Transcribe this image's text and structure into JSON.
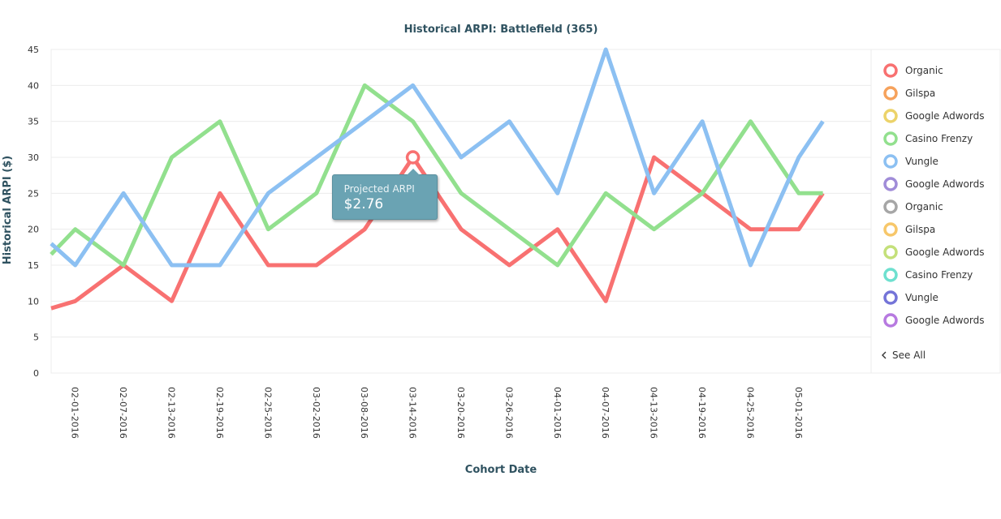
{
  "chart_data": {
    "type": "line",
    "title": "Historical ARPI: Battlefield (365)",
    "xlabel": "Cohort Date",
    "ylabel": "Historical ARPI ($)",
    "ylim": [
      0,
      45
    ],
    "yticks": [
      0,
      5,
      10,
      15,
      20,
      25,
      30,
      35,
      40,
      45
    ],
    "grid": true,
    "legend_position": "right",
    "categories": [
      "02-01-2016",
      "02-07-2016",
      "02-13-2016",
      "02-19-2016",
      "02-25-2016",
      "03-02-2016",
      "03-08-2016",
      "03-14-2016",
      "03-20-2016",
      "03-26-2016",
      "04-01-2016",
      "04-07-2016",
      "04-13-2016",
      "04-19-2016",
      "04-25-2016",
      "05-01-2016"
    ],
    "x_range": [
      -0.5,
      16.5
    ],
    "series": [
      {
        "name": "Organic",
        "color": "#f87171",
        "x": [
          -0.5,
          0,
          1,
          2,
          3,
          4,
          5,
          6,
          7,
          8,
          9,
          10,
          11,
          12,
          13,
          14,
          15,
          15.5
        ],
        "values": [
          9,
          10,
          15,
          10,
          25,
          15,
          15,
          20,
          30,
          20,
          15,
          20,
          10,
          30,
          25,
          20,
          20,
          25
        ]
      },
      {
        "name": "Casino Frenzy",
        "color": "#92e08e",
        "x": [
          -0.5,
          0,
          1,
          2,
          3,
          4,
          5,
          6,
          7,
          8,
          9,
          10,
          11,
          12,
          13,
          14,
          15,
          15.5
        ],
        "values": [
          16.5,
          20,
          15,
          30,
          35,
          20,
          25,
          40,
          35,
          25,
          20,
          15,
          25,
          20,
          25,
          35,
          25,
          25
        ]
      },
      {
        "name": "Vungle",
        "color": "#8cc0f2",
        "x": [
          -0.5,
          0,
          1,
          2,
          3,
          4,
          5,
          6,
          7,
          8,
          9,
          10,
          11,
          12,
          13,
          14,
          15,
          15.5
        ],
        "values": [
          18,
          15,
          25,
          15,
          15,
          25,
          30,
          35,
          40,
          30,
          35,
          25,
          45,
          25,
          35,
          15,
          30,
          35
        ]
      }
    ],
    "highlight_point": {
      "series": "Organic",
      "x": 7,
      "value": 30
    },
    "tooltip": {
      "label": "Projected ARPI",
      "value": "$2.76"
    }
  },
  "legend": {
    "items": [
      {
        "label": "Organic",
        "color": "#f87171"
      },
      {
        "label": "Gilspa",
        "color": "#f6a25c"
      },
      {
        "label": "Google Adwords",
        "color": "#ecd36a"
      },
      {
        "label": "Casino Frenzy",
        "color": "#92e08e"
      },
      {
        "label": "Vungle",
        "color": "#8cc0f2"
      },
      {
        "label": "Google Adwords",
        "color": "#a08cd8"
      },
      {
        "label": "Organic",
        "color": "#a6a6a6"
      },
      {
        "label": "Gilspa",
        "color": "#f7c76a"
      },
      {
        "label": "Google Adwords",
        "color": "#c4e07a"
      },
      {
        "label": "Casino Frenzy",
        "color": "#6ee0cf"
      },
      {
        "label": "Vungle",
        "color": "#7474d8"
      },
      {
        "label": "Google Adwords",
        "color": "#b77ae0"
      }
    ],
    "see_all_label": "See All",
    "see_all_icon": "chevron-left-icon"
  }
}
